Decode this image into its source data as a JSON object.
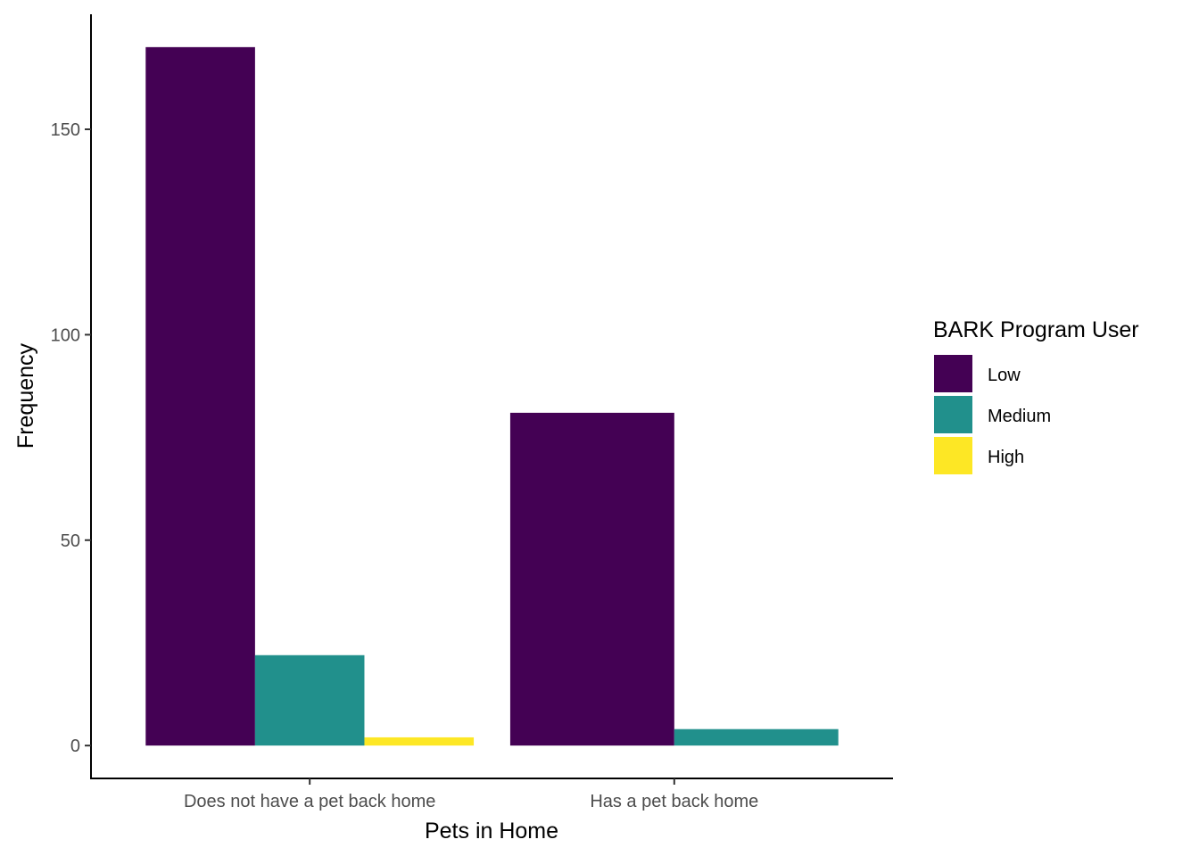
{
  "chart_data": {
    "type": "bar",
    "xlabel": "Pets in Home",
    "ylabel": "Frequency",
    "categories": [
      "Does not have a pet back home",
      "Has a pet back home"
    ],
    "series": [
      {
        "name": "Low",
        "color": "#440154",
        "values": [
          170,
          81
        ]
      },
      {
        "name": "Medium",
        "color": "#21908C",
        "values": [
          22,
          4
        ]
      },
      {
        "name": "High",
        "color": "#FDE725",
        "values": [
          2,
          0
        ]
      }
    ],
    "ylim": [
      -8,
      178
    ],
    "yticks": [
      0,
      50,
      100,
      150
    ],
    "legend": {
      "title": "BARK Program User",
      "position": "right"
    },
    "grid": false
  }
}
